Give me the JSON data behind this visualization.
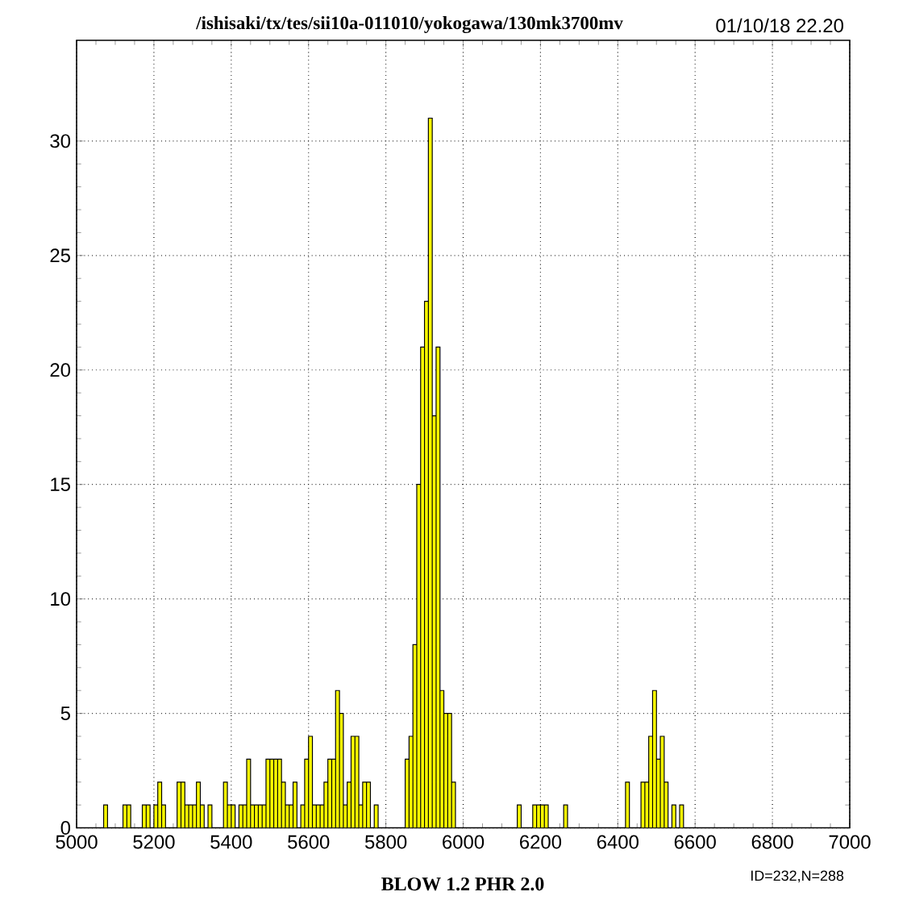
{
  "chart_data": {
    "type": "histogram",
    "title": "/ishisaki/tx/tes/sii10a-011010/yokogawa/130mk3700mv",
    "xlabel": "BLOW  1.2 PHR  2.0",
    "annotations": [
      "01/10/18   22.20",
      "ID=232,N=288"
    ],
    "bins": [
      5070,
      5080,
      5090,
      5100,
      5110,
      5120,
      5130,
      5140,
      5150,
      5160,
      5170,
      5180,
      5190,
      5200,
      5210,
      5220,
      5230,
      5240,
      5250,
      5260,
      5270,
      5280,
      5290,
      5300,
      5310,
      5320,
      5330,
      5340,
      5350,
      5360,
      5370,
      5380,
      5390,
      5400,
      5410,
      5420,
      5430,
      5440,
      5450,
      5460,
      5470,
      5480,
      5490,
      5500,
      5510,
      5520,
      5530,
      5540,
      5550,
      5560,
      5570,
      5580,
      5590,
      5600,
      5610,
      5620,
      5630,
      5640,
      5650,
      5660,
      5670,
      5680,
      5690,
      5700,
      5710,
      5720,
      5730,
      5740,
      5750,
      5760,
      5770,
      5780,
      5790,
      5800,
      5810,
      5820,
      5830,
      5840,
      5850,
      5860,
      5870,
      5880,
      5890,
      5900,
      5910,
      5920,
      5930,
      5940,
      5950,
      5960,
      5970,
      5980,
      5990,
      6000,
      6010,
      6020,
      6030,
      6040,
      6050,
      6060,
      6070,
      6080,
      6090,
      6100,
      6110,
      6120,
      6130,
      6140,
      6150,
      6160,
      6170,
      6180,
      6190,
      6200,
      6210,
      6220,
      6230,
      6240,
      6250,
      6260,
      6270,
      6280,
      6290,
      6300,
      6310,
      6320,
      6330,
      6340,
      6350,
      6360,
      6370,
      6380,
      6390,
      6400,
      6410,
      6420,
      6430,
      6440,
      6450,
      6460,
      6470,
      6480,
      6490,
      6500,
      6510,
      6520,
      6530,
      6540,
      6550,
      6560,
      6570
    ],
    "values": [
      1,
      0,
      0,
      0,
      0,
      1,
      1,
      0,
      0,
      0,
      1,
      1,
      0,
      1,
      2,
      1,
      0,
      0,
      0,
      2,
      2,
      1,
      1,
      1,
      2,
      1,
      0,
      1,
      0,
      0,
      0,
      2,
      1,
      1,
      0,
      1,
      1,
      3,
      1,
      1,
      1,
      1,
      3,
      3,
      3,
      3,
      2,
      1,
      1,
      2,
      0,
      1,
      3,
      4,
      1,
      1,
      1,
      2,
      3,
      3,
      6,
      5,
      1,
      2,
      4,
      4,
      1,
      2,
      2,
      0,
      1,
      0,
      0,
      0,
      0,
      0,
      0,
      0,
      3,
      4,
      8,
      15,
      21,
      23,
      31,
      18,
      21,
      6,
      5,
      5,
      2,
      0,
      0,
      0,
      0,
      0,
      0,
      0,
      0,
      0,
      0,
      0,
      0,
      0,
      0,
      0,
      0,
      1,
      0,
      0,
      0,
      1,
      1,
      1,
      1,
      0,
      0,
      0,
      0,
      1,
      0,
      0,
      0,
      0,
      0,
      0,
      0,
      0,
      0,
      0,
      0,
      0,
      0,
      0,
      0,
      2,
      0,
      0,
      0,
      2,
      2,
      4,
      6,
      3,
      4,
      2,
      0,
      1,
      0,
      1
    ],
    "color": "#ffff00",
    "xlim": [
      5000,
      7000
    ],
    "xticks": [
      5000,
      5200,
      5400,
      5600,
      5800,
      6000,
      6200,
      6400,
      6600,
      6800,
      7000
    ],
    "ylim": [
      0,
      34.4
    ],
    "yticks": [
      0,
      5,
      10,
      15,
      20,
      25,
      30
    ],
    "grid": true,
    "line_style": "dotted"
  }
}
